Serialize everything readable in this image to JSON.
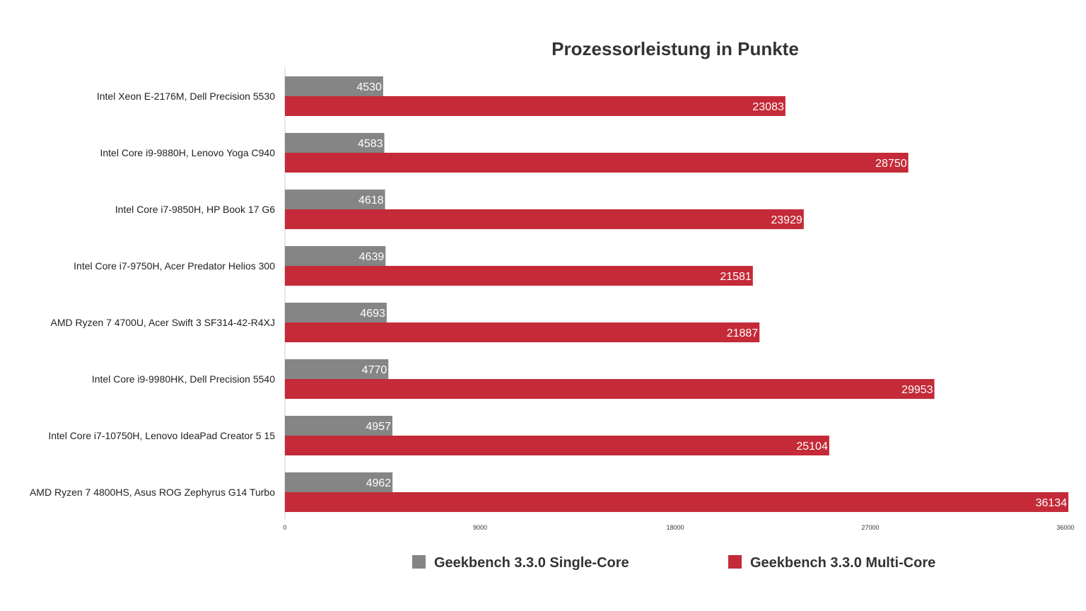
{
  "chart_data": {
    "type": "bar",
    "orientation": "horizontal",
    "title": "Prozessorleistung in Punkte",
    "categories": [
      "Intel Xeon E-2176M, Dell Precision 5530",
      "Intel Core i9-9880H, Lenovo Yoga C940",
      "Intel Core i7-9850H, HP Book 17 G6",
      "Intel Core i7-9750H, Acer Predator Helios 300",
      "AMD Ryzen 7 4700U, Acer Swift 3 SF314-42-R4XJ",
      "Intel Core i9-9980HK, Dell Precision 5540",
      "Intel Core i7-10750H, Lenovo IdeaPad Creator 5 15",
      "AMD Ryzen 7 4800HS, Asus ROG Zephyrus G14 Turbo"
    ],
    "series": [
      {
        "name": "Geekbench 3.3.0 Single-Core",
        "color": "#858585",
        "values": [
          4530,
          4583,
          4618,
          4639,
          4693,
          4770,
          4957,
          4962
        ]
      },
      {
        "name": "Geekbench 3.3.0 Multi-Core",
        "color": "#c42a37",
        "values": [
          23083,
          28750,
          23929,
          21581,
          21887,
          29953,
          25104,
          36134
        ]
      }
    ],
    "xlim": [
      0,
      36000
    ],
    "xticks": [
      "0",
      "9000",
      "18000",
      "27000",
      "36000"
    ],
    "xlabel": "",
    "ylabel": "",
    "grid": false,
    "data_labels": true,
    "legend_position": "bottom"
  }
}
